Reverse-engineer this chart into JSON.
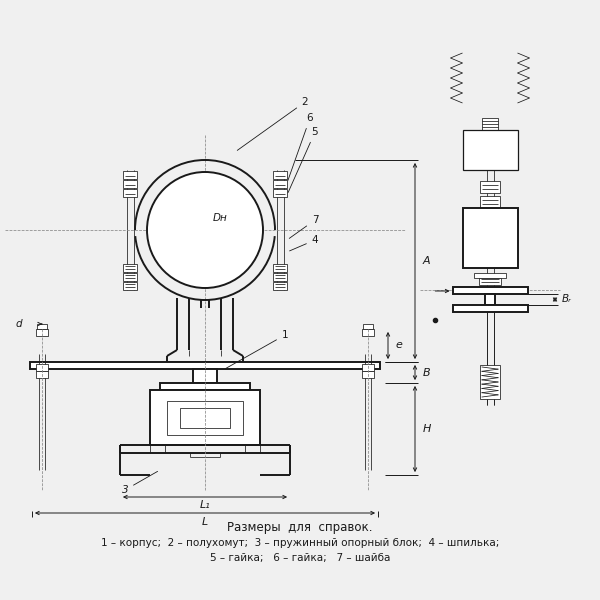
{
  "bg_color": "#f0f0f0",
  "line_color": "#1a1a1a",
  "title_text": "Размеры  для  справок.",
  "legend_line1": "1 – корпус;  2 – полухомут;  3 – пружинный опорный блок;  4 – шпилька;",
  "legend_line2": "5 – гайка;   6 – гайка;   7 – шайба",
  "title_fontsize": 8.5,
  "legend_fontsize": 7.5,
  "lw_thick": 1.4,
  "lw_med": 0.9,
  "lw_thin": 0.55,
  "lw_dim": 0.7
}
